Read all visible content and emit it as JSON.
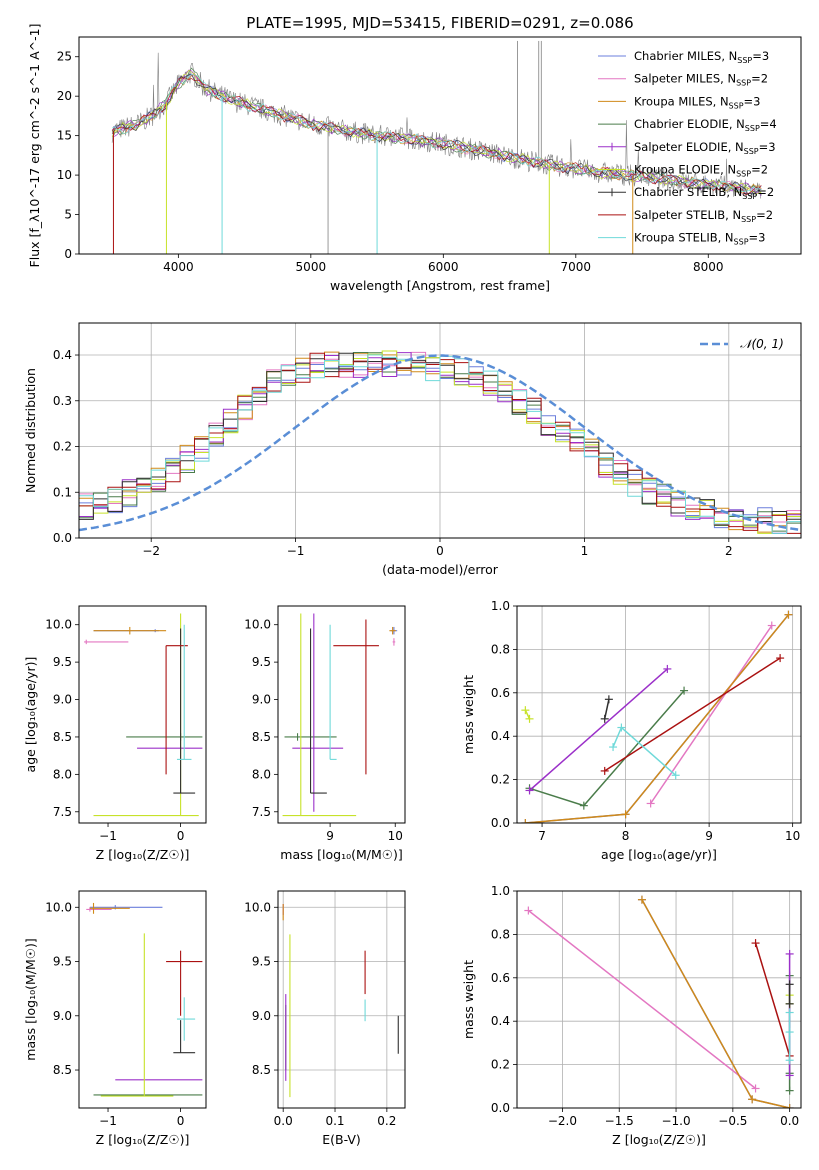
{
  "figure_title": "PLATE=1995, MJD=53415, FIBERID=0291, z=0.086",
  "colors": {
    "Chabrier MILES": "#6b7fdc",
    "Salpeter MILES": "#e377c2",
    "Kroupa MILES": "#d08a1a",
    "Chabrier ELODIE": "#4a7c4a",
    "Salpeter ELODIE": "#9b30c9",
    "Kroupa ELODIE": "#c7e22a",
    "Chabrier STELIB": "#303030",
    "Salpeter STELIB": "#aa1111",
    "Kroupa STELIB": "#6fd9d9",
    "data": "#808080",
    "normal": "#5a8ed6"
  },
  "chart_data": [
    {
      "id": "spectrum",
      "type": "line",
      "title": "PLATE=1995, MJD=53415, FIBERID=0291, z=0.086",
      "xlabel": "wavelength [Angstrom, rest frame]",
      "ylabel": "Flux [f_λ10^-17 erg cm^-2 s^-1 A^-1]",
      "xlim": [
        3250,
        8700
      ],
      "ylim": [
        0,
        27.5
      ],
      "xticks": [
        4000,
        5000,
        6000,
        7000,
        8000
      ],
      "yticks": [
        0,
        5,
        10,
        15,
        20,
        25
      ],
      "grid": false,
      "legend_position": "top-right",
      "legend": [
        {
          "model": "Chabrier MILES",
          "nssp": "3"
        },
        {
          "model": "Salpeter MILES",
          "nssp": "2"
        },
        {
          "model": "Kroupa MILES",
          "nssp": "3"
        },
        {
          "model": "Chabrier ELODIE",
          "nssp": "4"
        },
        {
          "model": "Salpeter ELODIE",
          "nssp": "3"
        },
        {
          "model": "Kroupa ELODIE",
          "nssp": "2"
        },
        {
          "model": "Chabrier STELIB",
          "nssp": "2"
        },
        {
          "model": "Salpeter STELIB",
          "nssp": "2"
        },
        {
          "model": "Kroupa STELIB",
          "nssp": "3"
        }
      ],
      "continuum": {
        "x": [
          3500,
          3700,
          3800,
          3900,
          4000,
          4100,
          4200,
          4400,
          4600,
          4800,
          5000,
          5200,
          5500,
          5800,
          6000,
          6300,
          6600,
          6800,
          7000,
          7200,
          7500,
          7800,
          8000,
          8200,
          8400
        ],
        "y": [
          15.5,
          16.5,
          17.5,
          19.0,
          21.5,
          23.0,
          21.0,
          19.5,
          18.5,
          17.5,
          16.5,
          15.8,
          15.0,
          14.5,
          14.0,
          13.0,
          12.0,
          11.3,
          10.8,
          10.3,
          9.8,
          9.2,
          8.8,
          8.4,
          8.0
        ]
      }
    },
    {
      "id": "residuals",
      "type": "histogram",
      "xlabel": "(data-model)/error",
      "ylabel": "Normed distribution",
      "xlim": [
        -2.5,
        2.5
      ],
      "ylim": [
        0,
        0.47
      ],
      "xticks": [
        -2,
        -1,
        0,
        1,
        2
      ],
      "yticks": [
        0.0,
        0.1,
        0.2,
        0.3,
        0.4
      ],
      "grid": true,
      "legend_position": "top-right",
      "legend_label": "𝒩(0, 1)",
      "approx_histogram": {
        "bin_centers": [
          -2.4,
          -2.2,
          -2.0,
          -1.8,
          -1.6,
          -1.4,
          -1.2,
          -1.0,
          -0.8,
          -0.6,
          -0.4,
          -0.2,
          0.0,
          0.2,
          0.4,
          0.6,
          0.8,
          1.0,
          1.2,
          1.4,
          1.6,
          1.8,
          2.0,
          2.2,
          2.4
        ],
        "values": [
          0.07,
          0.09,
          0.12,
          0.16,
          0.21,
          0.27,
          0.33,
          0.36,
          0.38,
          0.38,
          0.38,
          0.38,
          0.37,
          0.36,
          0.33,
          0.29,
          0.24,
          0.2,
          0.15,
          0.11,
          0.08,
          0.06,
          0.05,
          0.04,
          0.03
        ]
      }
    },
    {
      "id": "age-vs-Z",
      "type": "errorbar",
      "xlabel": "Z [log₁₀(Z/Z☉)]",
      "ylabel": "age  [log₁₀(age/yr)]",
      "xlim": [
        -1.4,
        0.35
      ],
      "ylim": [
        7.35,
        10.25
      ],
      "xticks": [
        -1,
        0
      ],
      "yticks": [
        7.5,
        8.0,
        8.5,
        9.0,
        9.5,
        10.0
      ],
      "grid": false,
      "points": [
        {
          "model": "Chabrier MILES",
          "x": -0.35,
          "y": 9.92,
          "xerr": [
            0.85,
            0.05
          ],
          "yerr": [
            0.02,
            0.02
          ]
        },
        {
          "model": "Salpeter MILES",
          "x": -1.3,
          "y": 9.77,
          "xerr": [
            0.03,
            0.58
          ],
          "yerr": [
            0.03,
            0.03
          ]
        },
        {
          "model": "Kroupa MILES",
          "x": -0.7,
          "y": 9.92,
          "xerr": [
            0.5,
            0.5
          ],
          "yerr": [
            0.05,
            0.05
          ]
        },
        {
          "model": "Chabrier ELODIE",
          "x": 0.0,
          "y": 8.5,
          "xerr": [
            0.75,
            0.3
          ],
          "yerr": [
            0.05,
            0.05
          ]
        },
        {
          "model": "Salpeter ELODIE",
          "x": 0.0,
          "y": 8.35,
          "xerr": [
            0.6,
            0.3
          ],
          "yerr": [
            0.02,
            0.02
          ]
        },
        {
          "model": "Kroupa ELODIE",
          "x": 0.0,
          "y": 7.45,
          "xerr": [
            1.2,
            0.25
          ],
          "yerr": [
            0.0,
            2.7
          ]
        },
        {
          "model": "Chabrier STELIB",
          "x": 0.0,
          "y": 7.75,
          "xerr": [
            0.1,
            0.2
          ],
          "yerr": [
            0.0,
            2.2
          ]
        },
        {
          "model": "Salpeter STELIB",
          "x": -0.2,
          "y": 9.72,
          "xerr": [
            0.0,
            0.3
          ],
          "yerr": [
            1.72,
            0.0
          ]
        },
        {
          "model": "Kroupa STELIB",
          "x": 0.05,
          "y": 8.2,
          "xerr": [
            0.1,
            0.1
          ],
          "yerr": [
            0.0,
            1.8
          ]
        }
      ]
    },
    {
      "id": "age-vs-mass",
      "type": "errorbar",
      "xlabel": "mass [log₁₀(M/M☉)]",
      "ylabel": "",
      "xlim": [
        8.2,
        10.15
      ],
      "ylim": [
        7.35,
        10.25
      ],
      "xticks": [
        9,
        10
      ],
      "yticks": [
        7.5,
        8.0,
        8.5,
        9.0,
        9.5,
        10.0
      ],
      "grid": false,
      "points": [
        {
          "model": "Chabrier MILES",
          "x": 9.98,
          "y": 9.92,
          "xerr": [
            0.05,
            0.05
          ],
          "yerr": [
            0.05,
            0.05
          ]
        },
        {
          "model": "Salpeter MILES",
          "x": 9.98,
          "y": 9.77,
          "xerr": [
            0.02,
            0.02
          ],
          "yerr": [
            0.05,
            0.05
          ]
        },
        {
          "model": "Kroupa MILES",
          "x": 9.96,
          "y": 9.92,
          "xerr": [
            0.05,
            0.05
          ],
          "yerr": [
            0.05,
            0.05
          ]
        },
        {
          "model": "Chabrier ELODIE",
          "x": 8.5,
          "y": 8.5,
          "xerr": [
            0.2,
            0.6
          ],
          "yerr": [
            0.05,
            0.05
          ]
        },
        {
          "model": "Salpeter ELODIE",
          "x": 8.75,
          "y": 8.35,
          "xerr": [
            0.33,
            0.45
          ],
          "yerr": [
            0.85,
            1.8
          ]
        },
        {
          "model": "Kroupa ELODIE",
          "x": 8.55,
          "y": 7.45,
          "xerr": [
            0.28,
            0.85
          ],
          "yerr": [
            0.0,
            2.7
          ]
        },
        {
          "model": "Chabrier STELIB",
          "x": 8.7,
          "y": 7.75,
          "xerr": [
            0.0,
            0.25
          ],
          "yerr": [
            0.0,
            2.2
          ]
        },
        {
          "model": "Salpeter STELIB",
          "x": 9.55,
          "y": 9.72,
          "xerr": [
            0.5,
            0.2
          ],
          "yerr": [
            1.72,
            0.35
          ]
        },
        {
          "model": "Kroupa STELIB",
          "x": 9.0,
          "y": 8.2,
          "xerr": [
            0.0,
            0.1
          ],
          "yerr": [
            0.0,
            1.8
          ]
        }
      ]
    },
    {
      "id": "mass-weight-vs-age",
      "type": "line",
      "xlabel": "age  [log₁₀(age/yr)]",
      "ylabel": "mass weight",
      "xlim": [
        6.7,
        10.1
      ],
      "ylim": [
        0.0,
        1.0
      ],
      "xticks": [
        7,
        8,
        9,
        10
      ],
      "yticks": [
        0.0,
        0.2,
        0.4,
        0.6,
        0.8,
        1.0
      ],
      "grid": true,
      "series": [
        {
          "model": "Chabrier MILES",
          "x": [
            6.8,
            8.0,
            9.95
          ],
          "y": [
            0.0,
            0.04,
            0.96
          ]
        },
        {
          "model": "Salpeter MILES",
          "x": [
            8.3,
            9.75
          ],
          "y": [
            0.09,
            0.91
          ]
        },
        {
          "model": "Kroupa MILES",
          "x": [
            6.8,
            8.0,
            9.95
          ],
          "y": [
            0.0,
            0.04,
            0.96
          ]
        },
        {
          "model": "Chabrier ELODIE",
          "x": [
            6.85,
            7.5,
            8.7
          ],
          "y": [
            0.16,
            0.08,
            0.61
          ]
        },
        {
          "model": "Salpeter ELODIE",
          "x": [
            6.85,
            8.5
          ],
          "y": [
            0.15,
            0.71
          ]
        },
        {
          "model": "Kroupa ELODIE",
          "x": [
            6.8,
            6.85
          ],
          "y": [
            0.52,
            0.48
          ]
        },
        {
          "model": "Chabrier STELIB",
          "x": [
            7.75,
            7.8
          ],
          "y": [
            0.48,
            0.57
          ]
        },
        {
          "model": "Salpeter STELIB",
          "x": [
            7.75,
            9.85
          ],
          "y": [
            0.24,
            0.76
          ]
        },
        {
          "model": "Kroupa STELIB",
          "x": [
            7.85,
            7.95,
            8.6
          ],
          "y": [
            0.35,
            0.44,
            0.22
          ]
        }
      ]
    },
    {
      "id": "mass-vs-Z",
      "type": "errorbar",
      "xlabel": "Z [log₁₀(Z/Z☉)]",
      "ylabel": "mass [log₁₀(M/M☉)]",
      "xlim": [
        -1.4,
        0.35
      ],
      "ylim": [
        8.15,
        10.15
      ],
      "xticks": [
        -1,
        0
      ],
      "yticks": [
        8.5,
        9.0,
        9.5,
        10.0
      ],
      "grid": false,
      "points": [
        {
          "model": "Chabrier MILES",
          "x": -0.9,
          "y": 10.0,
          "xerr": [
            0.35,
            0.65
          ],
          "yerr": [
            0.02,
            0.02
          ]
        },
        {
          "model": "Salpeter MILES",
          "x": -1.25,
          "y": 9.98,
          "xerr": [
            0.05,
            0.3
          ],
          "yerr": [
            0.02,
            0.02
          ]
        },
        {
          "model": "Kroupa MILES",
          "x": -1.2,
          "y": 9.99,
          "xerr": [
            0.05,
            0.5
          ],
          "yerr": [
            0.05,
            0.05
          ]
        },
        {
          "model": "Chabrier ELODIE",
          "x": 0.0,
          "y": 8.27,
          "xerr": [
            1.2,
            0.3
          ],
          "yerr": [
            0.0,
            0.0
          ]
        },
        {
          "model": "Salpeter ELODIE",
          "x": -0.3,
          "y": 8.41,
          "xerr": [
            0.6,
            0.6
          ],
          "yerr": [
            0.0,
            0.0
          ]
        },
        {
          "model": "Kroupa ELODIE",
          "x": -0.5,
          "y": 8.26,
          "xerr": [
            0.6,
            0.4
          ],
          "yerr": [
            0.0,
            1.5
          ]
        },
        {
          "model": "Chabrier STELIB",
          "x": 0.0,
          "y": 8.66,
          "xerr": [
            0.1,
            0.2
          ],
          "yerr": [
            0.0,
            0.3
          ]
        },
        {
          "model": "Salpeter STELIB",
          "x": 0.0,
          "y": 9.5,
          "xerr": [
            0.2,
            0.3
          ],
          "yerr": [
            0.5,
            0.1
          ]
        },
        {
          "model": "Kroupa STELIB",
          "x": 0.05,
          "y": 8.97,
          "xerr": [
            0.1,
            0.15
          ],
          "yerr": [
            0.2,
            0.2
          ]
        }
      ]
    },
    {
      "id": "mass-vs-ebv",
      "type": "errorbar",
      "xlabel": "E(B-V)",
      "ylabel": "",
      "xlim": [
        -0.01,
        0.235
      ],
      "ylim": [
        8.15,
        10.15
      ],
      "xticks": [
        0.0,
        0.1,
        0.2
      ],
      "yticks": [
        8.5,
        9.0,
        9.5,
        10.0
      ],
      "grid": true,
      "points": [
        {
          "model": "Chabrier MILES",
          "x": 0.0,
          "y": 9.98,
          "xerr": [
            0.0,
            0.0
          ],
          "yerr": [
            0.05,
            0.05
          ]
        },
        {
          "model": "Salpeter MILES",
          "x": 0.0,
          "y": 9.98,
          "xerr": [
            0.0,
            0.0
          ],
          "yerr": [
            0.05,
            0.05
          ]
        },
        {
          "model": "Kroupa MILES",
          "x": 0.0,
          "y": 9.98,
          "xerr": [
            0.0,
            0.0
          ],
          "yerr": [
            0.1,
            0.05
          ]
        },
        {
          "model": "Chabrier ELODIE",
          "x": 0.005,
          "y": 8.8,
          "xerr": [
            0.0,
            0.0
          ],
          "yerr": [
            0.3,
            0.3
          ]
        },
        {
          "model": "Salpeter ELODIE",
          "x": 0.005,
          "y": 8.8,
          "xerr": [
            0.0,
            0.0
          ],
          "yerr": [
            0.4,
            0.4
          ]
        },
        {
          "model": "Kroupa ELODIE",
          "x": 0.013,
          "y": 8.9,
          "xerr": [
            0.0,
            0.0
          ],
          "yerr": [
            0.65,
            0.85
          ]
        },
        {
          "model": "Chabrier STELIB",
          "x": 0.222,
          "y": 8.8,
          "xerr": [
            0.0,
            0.0
          ],
          "yerr": [
            0.15,
            0.2
          ]
        },
        {
          "model": "Salpeter STELIB",
          "x": 0.158,
          "y": 9.4,
          "xerr": [
            0.0,
            0.0
          ],
          "yerr": [
            0.2,
            0.2
          ]
        },
        {
          "model": "Kroupa STELIB",
          "x": 0.158,
          "y": 9.05,
          "xerr": [
            0.0,
            0.0
          ],
          "yerr": [
            0.1,
            0.1
          ]
        }
      ]
    },
    {
      "id": "mass-weight-vs-Z",
      "type": "line",
      "xlabel": "Z [log₁₀(Z/Z☉)]",
      "ylabel": "mass weight",
      "xlim": [
        -2.4,
        0.1
      ],
      "ylim": [
        0.0,
        1.0
      ],
      "xticks": [
        -2.0,
        -1.5,
        -1.0,
        -0.5,
        0.0
      ],
      "yticks": [
        0.0,
        0.2,
        0.4,
        0.6,
        0.8,
        1.0
      ],
      "grid": true,
      "series": [
        {
          "model": "Chabrier MILES",
          "x": [
            -1.3,
            -0.33,
            0.0
          ],
          "y": [
            0.96,
            0.04,
            0.0
          ]
        },
        {
          "model": "Salpeter MILES",
          "x": [
            -2.3,
            -0.3
          ],
          "y": [
            0.91,
            0.09
          ]
        },
        {
          "model": "Kroupa MILES",
          "x": [
            -1.3,
            -0.33,
            0.0
          ],
          "y": [
            0.96,
            0.04,
            0.0
          ]
        },
        {
          "model": "Chabrier ELODIE",
          "x": [
            0.0,
            0.0,
            0.0
          ],
          "y": [
            0.16,
            0.08,
            0.61
          ]
        },
        {
          "model": "Salpeter ELODIE",
          "x": [
            0.0,
            0.0
          ],
          "y": [
            0.15,
            0.71
          ]
        },
        {
          "model": "Kroupa ELODIE",
          "x": [
            0.0,
            0.0
          ],
          "y": [
            0.52,
            0.48
          ]
        },
        {
          "model": "Chabrier STELIB",
          "x": [
            0.0,
            0.0
          ],
          "y": [
            0.48,
            0.57
          ]
        },
        {
          "model": "Salpeter STELIB",
          "x": [
            -0.3,
            0.0
          ],
          "y": [
            0.76,
            0.24
          ]
        },
        {
          "model": "Kroupa STELIB",
          "x": [
            0.0,
            0.0,
            0.0
          ],
          "y": [
            0.35,
            0.44,
            0.22
          ]
        }
      ]
    }
  ]
}
